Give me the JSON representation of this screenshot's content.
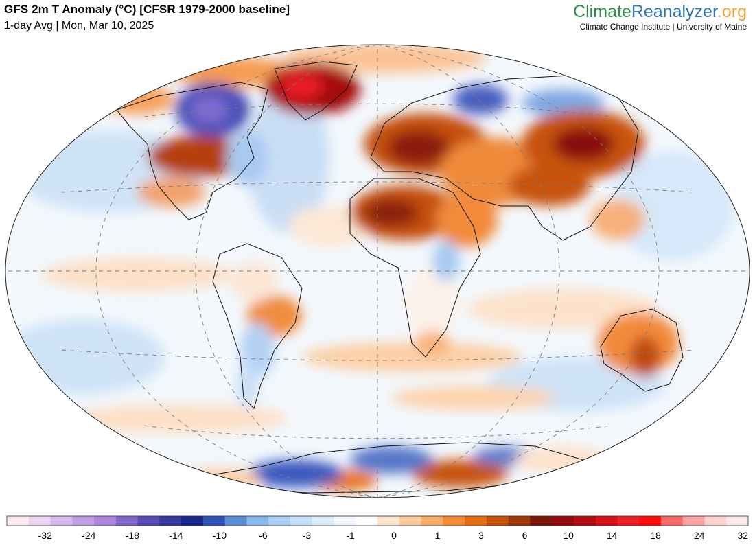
{
  "header": {
    "title": "GFS 2m T Anomaly (°C) [CFSR 1979-2000 baseline]",
    "subtitle": "1-day Avg | Mon, Mar 10, 2025"
  },
  "brand": {
    "name_part1": "Climate",
    "name_part2": "Reanalyzer",
    "name_part3": ".org",
    "affiliation": "Climate Change Institute | University of Maine",
    "colors": {
      "climate": "#2f8f4e",
      "reanalyzer": "#2f76b5",
      "org": "#f2a33a"
    }
  },
  "map": {
    "projection": "Robinson (world)",
    "graticule": "dashed",
    "background_color": "#ffffff"
  },
  "legend": {
    "colors": [
      "#fde9ef",
      "#e8d4f1",
      "#d4b9ec",
      "#c2a0e6",
      "#ad86dd",
      "#8566cc",
      "#5a4cb5",
      "#343a9e",
      "#1a268f",
      "#2f55b8",
      "#5d8fd6",
      "#8bbbee",
      "#a8cff5",
      "#c3def8",
      "#ddecfb",
      "#f0f7fd",
      "#ffffff",
      "#fde4cf",
      "#fcc99b",
      "#f9ab68",
      "#f58b35",
      "#e86e14",
      "#c8520a",
      "#a03808",
      "#7c1606",
      "#940a0e",
      "#b30d13",
      "#d41217",
      "#ec2027",
      "#fe0d0d",
      "#fb6b6b",
      "#fca4a4",
      "#fdd0d0",
      "#fde8ec"
    ],
    "tick_labels": [
      "-32",
      "-24",
      "-18",
      "-14",
      "-10",
      "-6",
      "-3",
      "-1",
      "0",
      "1",
      "3",
      "6",
      "10",
      "14",
      "18",
      "24",
      "32"
    ]
  }
}
